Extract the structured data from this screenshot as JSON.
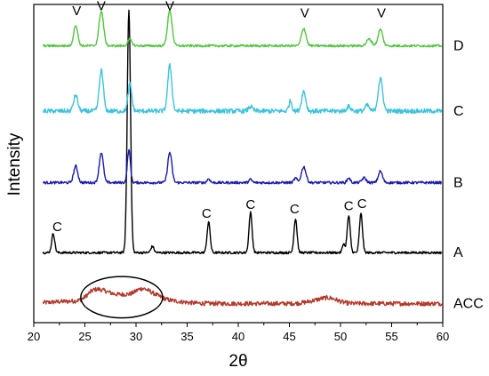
{
  "chart_data": {
    "type": "line",
    "xlabel": "2θ",
    "ylabel": "Intensity",
    "xlim": [
      20,
      60
    ],
    "ylim": [
      0,
      100
    ],
    "xticks": [
      20,
      25,
      30,
      35,
      40,
      45,
      50,
      55,
      60
    ],
    "xtick_labels": [
      "20",
      "25",
      "30",
      "35",
      "40",
      "45",
      "50",
      "55",
      "60"
    ],
    "grid": false,
    "series": [
      {
        "name": "ACC",
        "color": "#b5392a",
        "baseline": 6,
        "noise": 0.7,
        "peaks": [
          [
            24.5,
            0.8,
            2.5
          ],
          [
            25.7,
            2.2,
            0.6
          ],
          [
            26.6,
            2.4,
            0.7
          ],
          [
            27.8,
            2.0,
            0.8
          ],
          [
            29.0,
            1.6,
            0.6
          ],
          [
            30.4,
            3.6,
            0.7
          ],
          [
            31.6,
            2.0,
            0.8
          ],
          [
            33.0,
            0.9,
            1.5
          ],
          [
            47.8,
            0.9,
            1.0
          ],
          [
            49.0,
            1.3,
            0.8
          ]
        ]
      },
      {
        "name": "A",
        "color": "#000000",
        "baseline": 22,
        "noise": 0.35,
        "peaks": [
          [
            21.9,
            6.0,
            0.15
          ],
          [
            29.3,
            76.5,
            0.16
          ],
          [
            31.6,
            2.0,
            0.15
          ],
          [
            37.1,
            9.6,
            0.15
          ],
          [
            41.2,
            12.6,
            0.15
          ],
          [
            45.6,
            10.7,
            0.15
          ],
          [
            50.3,
            2.8,
            0.12
          ],
          [
            50.8,
            11.5,
            0.15
          ],
          [
            52.0,
            12.2,
            0.15
          ]
        ]
      },
      {
        "name": "B",
        "color": "#1a1ab0",
        "baseline": 44,
        "noise": 0.4,
        "peaks": [
          [
            24.1,
            5.2,
            0.2
          ],
          [
            26.6,
            9.5,
            0.2
          ],
          [
            29.3,
            10.2,
            0.15
          ],
          [
            33.3,
            9.5,
            0.2
          ],
          [
            37.1,
            1.2,
            0.15
          ],
          [
            41.2,
            1.0,
            0.15
          ],
          [
            45.6,
            1.4,
            0.15
          ],
          [
            46.4,
            5.0,
            0.22
          ],
          [
            50.8,
            1.5,
            0.15
          ],
          [
            52.3,
            1.5,
            0.2
          ],
          [
            53.9,
            3.6,
            0.2
          ]
        ]
      },
      {
        "name": "C",
        "color": "#3cc4de",
        "baseline": 66.5,
        "noise": 0.7,
        "peaks": [
          [
            24.1,
            5.0,
            0.2
          ],
          [
            26.6,
            12.8,
            0.2
          ],
          [
            29.4,
            8.5,
            0.18
          ],
          [
            33.3,
            14.3,
            0.2
          ],
          [
            41.2,
            1.4,
            0.2
          ],
          [
            45.1,
            3.2,
            0.15
          ],
          [
            46.4,
            6.2,
            0.2
          ],
          [
            50.8,
            1.4,
            0.2
          ],
          [
            52.6,
            1.8,
            0.2
          ],
          [
            53.9,
            10.2,
            0.22
          ]
        ]
      },
      {
        "name": "D",
        "color": "#4fc83a",
        "baseline": 87,
        "noise": 0.35,
        "peaks": [
          [
            24.1,
            6.5,
            0.2
          ],
          [
            26.6,
            10.9,
            0.22
          ],
          [
            29.4,
            2.0,
            0.2
          ],
          [
            33.3,
            11.1,
            0.22
          ],
          [
            46.4,
            5.5,
            0.22
          ],
          [
            52.8,
            2.1,
            0.25
          ],
          [
            53.9,
            5.2,
            0.22
          ]
        ]
      }
    ],
    "peak_labels": [
      {
        "text": "V",
        "x": 24.2,
        "y": 96.6
      },
      {
        "text": "V",
        "x": 26.6,
        "y": 98.2
      },
      {
        "text": "V",
        "x": 33.3,
        "y": 98.2
      },
      {
        "text": "V",
        "x": 46.5,
        "y": 95.9
      },
      {
        "text": "V",
        "x": 54.0,
        "y": 95.9
      },
      {
        "text": "C",
        "x": 22.3,
        "y": 28.8
      },
      {
        "text": "C",
        "x": 36.9,
        "y": 33.0
      },
      {
        "text": "C",
        "x": 41.2,
        "y": 35.8
      },
      {
        "text": "C",
        "x": 45.5,
        "y": 34.3
      },
      {
        "text": "C",
        "x": 50.8,
        "y": 35.3
      },
      {
        "text": "C",
        "x": 52.1,
        "y": 36.0
      }
    ],
    "annotation_ellipse": {
      "cx": 28.6,
      "cy": 8.0,
      "rx": 4.0,
      "ry": 6.5
    }
  }
}
